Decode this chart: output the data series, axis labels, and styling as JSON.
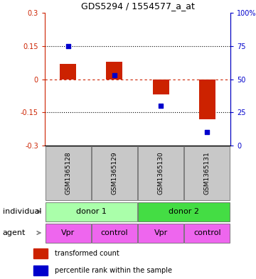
{
  "title": "GDS5294 / 1554577_a_at",
  "samples": [
    "GSM1365128",
    "GSM1365129",
    "GSM1365130",
    "GSM1365131"
  ],
  "red_values": [
    0.07,
    0.08,
    -0.07,
    -0.18
  ],
  "blue_values_pct": [
    75,
    53,
    30,
    10
  ],
  "ylim_left": [
    -0.3,
    0.3
  ],
  "ylim_right": [
    0,
    100
  ],
  "yticks_left": [
    -0.3,
    -0.15,
    0,
    0.15,
    0.3
  ],
  "yticks_right": [
    0,
    25,
    50,
    75,
    100
  ],
  "ytick_labels_right": [
    "0",
    "25",
    "50",
    "75",
    "100%"
  ],
  "bar_width": 0.35,
  "individual_labels": [
    "donor 1",
    "donor 2"
  ],
  "agent_labels": [
    "Vpr",
    "control",
    "Vpr",
    "control"
  ],
  "individual_color_light": "#AAFFAA",
  "individual_color_dark": "#44DD44",
  "agent_color": "#EE66EE",
  "sample_bg_color": "#C8C8C8",
  "red_color": "#CC2200",
  "blue_color": "#0000CC",
  "legend_red_label": "transformed count",
  "legend_blue_label": "percentile rank within the sample",
  "title_fontsize": 9,
  "tick_fontsize": 7,
  "label_fontsize": 8,
  "sample_fontsize": 6.5
}
